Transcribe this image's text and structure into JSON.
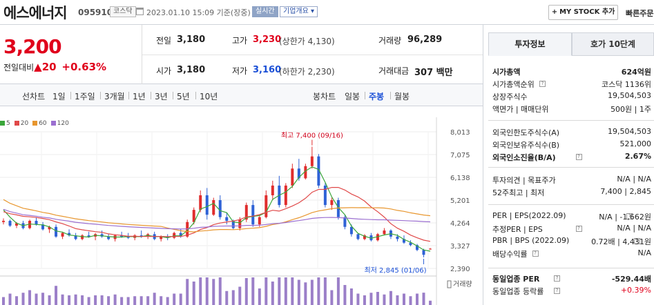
{
  "header": {
    "company_name": "에스에너지",
    "code": "095910",
    "market_tag": "코스닥",
    "datetime": "2023.01.10 15:09 기준(장중)",
    "live_tag": "실시간",
    "info_tag": "기업개요 ▾",
    "my_stock_button": "MY STOCK 추가",
    "quick_order": "빠른주문"
  },
  "price": {
    "current": "3,200",
    "change_label": "전일대비",
    "change_arrow": "▲",
    "change_value": "20",
    "change_pct": "+0.63%"
  },
  "quote": {
    "prev_label": "전일",
    "prev_value": "3,180",
    "high_label": "고가",
    "high_value": "3,230",
    "high_limit": "(상한가 4,130)",
    "volume_label": "거래량",
    "volume_value": "96,289",
    "open_label": "시가",
    "open_value": "3,180",
    "low_label": "저가",
    "low_value": "3,160",
    "low_limit": "(하한가 2,230)",
    "amount_label": "거래대금",
    "amount_value": "307 백만"
  },
  "period_tabs": {
    "line_chart": "선차트",
    "items": [
      "1일",
      "1주일",
      "3개월",
      "1년",
      "3년",
      "5년",
      "10년"
    ],
    "candle_chart": "봉차트",
    "candle_items": [
      "일봉",
      "주봉",
      "월봉"
    ],
    "candle_active": "주봉"
  },
  "chart_data": {
    "type": "candlestick",
    "moving_averages": [
      {
        "name": "5",
        "color": "#3aa63a"
      },
      {
        "name": "20",
        "color": "#e04848"
      },
      {
        "name": "60",
        "color": "#e8962e"
      },
      {
        "name": "120",
        "color": "#9b6fd0"
      }
    ],
    "y_ticks": [
      "8,013",
      "7,075",
      "6,138",
      "5,201",
      "4,264",
      "3,327",
      "2,390"
    ],
    "ylim": [
      2390,
      8013
    ],
    "high_annotation": "최고 7,400 (09/16)",
    "low_annotation": "최저 2,845 (01/06)",
    "volume_label": "거래량",
    "candles": [
      [
        4300,
        4450,
        4200,
        4350
      ],
      [
        4350,
        4400,
        4100,
        4150
      ],
      [
        4150,
        4300,
        4050,
        4250
      ],
      [
        4250,
        4350,
        4000,
        4050
      ],
      [
        4050,
        4400,
        4000,
        4350
      ],
      [
        4350,
        4500,
        4150,
        4200
      ],
      [
        4200,
        4300,
        3950,
        4000
      ],
      [
        4000,
        4150,
        3850,
        4100
      ],
      [
        4100,
        4200,
        3650,
        3700
      ],
      [
        3700,
        3900,
        3600,
        3850
      ],
      [
        3850,
        4000,
        3700,
        3750
      ],
      [
        3750,
        3850,
        3550,
        3600
      ],
      [
        3600,
        3800,
        3550,
        3750
      ],
      [
        3750,
        3900,
        3650,
        3700
      ],
      [
        3700,
        3850,
        3550,
        3800
      ],
      [
        3800,
        3950,
        3650,
        3700
      ],
      [
        3700,
        3800,
        3550,
        3600
      ],
      [
        3600,
        3800,
        3500,
        3750
      ],
      [
        3750,
        3900,
        3650,
        3700
      ],
      [
        3700,
        3850,
        3600,
        3650
      ],
      [
        3650,
        3800,
        3550,
        3750
      ],
      [
        3750,
        3950,
        3650,
        3700
      ],
      [
        3700,
        3850,
        3600,
        3800
      ],
      [
        3800,
        3900,
        3550,
        3600
      ],
      [
        3600,
        3750,
        3500,
        3700
      ],
      [
        3700,
        3800,
        3550,
        3650
      ],
      [
        3650,
        3900,
        3600,
        3850
      ],
      [
        3850,
        4000,
        3650,
        3700
      ],
      [
        3700,
        4400,
        3650,
        4300
      ],
      [
        4300,
        4900,
        4200,
        4800
      ],
      [
        4800,
        5600,
        4700,
        5400
      ],
      [
        5400,
        5700,
        4400,
        4600
      ],
      [
        4600,
        5300,
        4550,
        5200
      ],
      [
        5200,
        5400,
        4400,
        4500
      ],
      [
        4500,
        4700,
        4200,
        4350
      ],
      [
        4350,
        4400,
        4000,
        4050
      ],
      [
        4050,
        4500,
        3950,
        4400
      ],
      [
        4400,
        5100,
        4300,
        5000
      ],
      [
        5000,
        5200,
        4100,
        4200
      ],
      [
        4200,
        4600,
        4100,
        4500
      ],
      [
        4500,
        5600,
        4450,
        5400
      ],
      [
        5400,
        6000,
        5200,
        5800
      ],
      [
        5800,
        6200,
        4900,
        5000
      ],
      [
        5000,
        5900,
        4900,
        5800
      ],
      [
        5800,
        6700,
        5700,
        6500
      ],
      [
        6500,
        6900,
        6000,
        6100
      ],
      [
        6100,
        6700,
        6050,
        6600
      ],
      [
        6600,
        7400,
        6500,
        7000
      ],
      [
        7000,
        7100,
        5700,
        5800
      ],
      [
        5800,
        5900,
        4900,
        5000
      ],
      [
        5000,
        5300,
        4800,
        5200
      ],
      [
        5200,
        5300,
        4400,
        4500
      ],
      [
        4500,
        4600,
        4000,
        4100
      ],
      [
        4100,
        4200,
        3700,
        3800
      ],
      [
        3800,
        3850,
        3550,
        3600
      ],
      [
        3600,
        3800,
        3550,
        3750
      ],
      [
        3750,
        3850,
        3500,
        3550
      ],
      [
        3550,
        3850,
        3500,
        3800
      ],
      [
        3800,
        4050,
        3750,
        3950
      ],
      [
        3950,
        4000,
        3600,
        3700
      ],
      [
        3700,
        3800,
        3500,
        3600
      ],
      [
        3600,
        3750,
        3400,
        3450
      ],
      [
        3450,
        3550,
        3300,
        3350
      ],
      [
        3350,
        3400,
        3100,
        3150
      ],
      [
        3150,
        3200,
        2845,
        2950
      ],
      [
        3180,
        3230,
        3160,
        3200
      ]
    ]
  },
  "right_panel": {
    "tab_active": "투자정보",
    "tab_other": "호가 10단계",
    "rows1": [
      {
        "k": "시가총액",
        "v": "624억원",
        "bold": true
      },
      {
        "k": "시가총액순위",
        "v": "코스닥 1136위",
        "icon": true
      },
      {
        "k": "상장주식수",
        "v": "19,504,503"
      },
      {
        "k": "액면가 | 매매단위",
        "v": "500원 | 1주"
      }
    ],
    "rows2": [
      {
        "k": "외국인한도주식수(A)",
        "v": "19,504,503"
      },
      {
        "k": "외국인보유주식수(B)",
        "v": "521,000"
      },
      {
        "k": "외국인소진율(B/A)",
        "v": "2.67%",
        "bold": true,
        "icon": true
      }
    ],
    "rows3": [
      {
        "k": "투자의견 | 목표주가",
        "v": "N/A | N/A"
      },
      {
        "k": "52주최고 | 최저",
        "v": "7,400 | 2,845"
      }
    ],
    "rows4": [
      {
        "k": "PER | EPS(2022.09)",
        "v": "N/A | -1,662원",
        "icon": true
      },
      {
        "k": "추정PER | EPS",
        "v": "N/A | N/A",
        "icon": true
      },
      {
        "k": "PBR | BPS (2022.09)",
        "v": "0.72배 | 4,431원",
        "icon": true
      },
      {
        "k": "배당수익률",
        "v": "N/A",
        "icon": true
      }
    ],
    "rows5": [
      {
        "k": "동일업종 PER",
        "v": "-529.44배",
        "bold": true,
        "icon": true
      },
      {
        "k": "동일업종 등락률",
        "v": "+0.39%",
        "icon": true,
        "up": true
      }
    ]
  }
}
